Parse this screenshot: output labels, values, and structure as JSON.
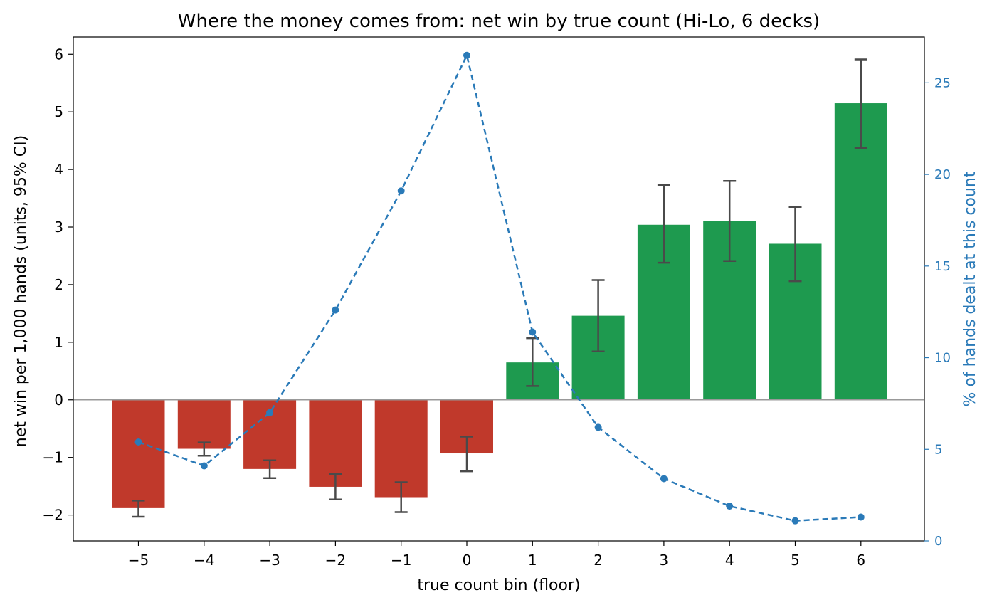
{
  "chart_data": {
    "type": "bar",
    "title": "Where the money comes from: net win by true count (Hi-Lo, 6 decks)",
    "xlabel": "true count bin (floor)",
    "ylabel": "net win per 1,000 hands (units, 95% CI)",
    "y2label": "% of hands dealt at this count",
    "categories": [
      "−5",
      "−4",
      "−3",
      "−2",
      "−1",
      "0",
      "1",
      "2",
      "3",
      "4",
      "5",
      "6"
    ],
    "ylim": [
      -2.45,
      6.3
    ],
    "y2lim": [
      0,
      27.5
    ],
    "yticks": [
      -2,
      -1,
      0,
      1,
      2,
      3,
      4,
      5,
      6
    ],
    "y2ticks": [
      0,
      5,
      10,
      15,
      20,
      25
    ],
    "grid": false,
    "legend": "none",
    "series": [
      {
        "values": [
          -1.88,
          -0.85,
          -1.2,
          -1.51,
          -1.69,
          -0.93,
          0.65,
          1.46,
          3.04,
          3.1,
          2.71,
          5.15
        ],
        "ci_low": [
          -2.03,
          -0.97,
          -1.36,
          -1.73,
          -1.95,
          -1.24,
          0.24,
          0.84,
          2.38,
          2.41,
          2.06,
          4.37
        ],
        "ci_high": [
          -1.75,
          -0.74,
          -1.05,
          -1.29,
          -1.43,
          -0.64,
          1.07,
          2.08,
          3.73,
          3.8,
          3.35,
          5.91
        ],
        "axis": "left",
        "style": "bar"
      },
      {
        "values": [
          5.4,
          4.1,
          7.0,
          12.6,
          19.1,
          26.5,
          11.4,
          6.2,
          3.4,
          1.9,
          1.1,
          1.3
        ],
        "axis": "right",
        "style": "dashed-line-markers"
      }
    ],
    "colors": {
      "negative": "#c0392b",
      "positive": "#1e9a4f",
      "line": "#2a7ab8",
      "errorbar": "#4a4a4a",
      "zero_line": "#999999",
      "axis": "#000000"
    }
  }
}
